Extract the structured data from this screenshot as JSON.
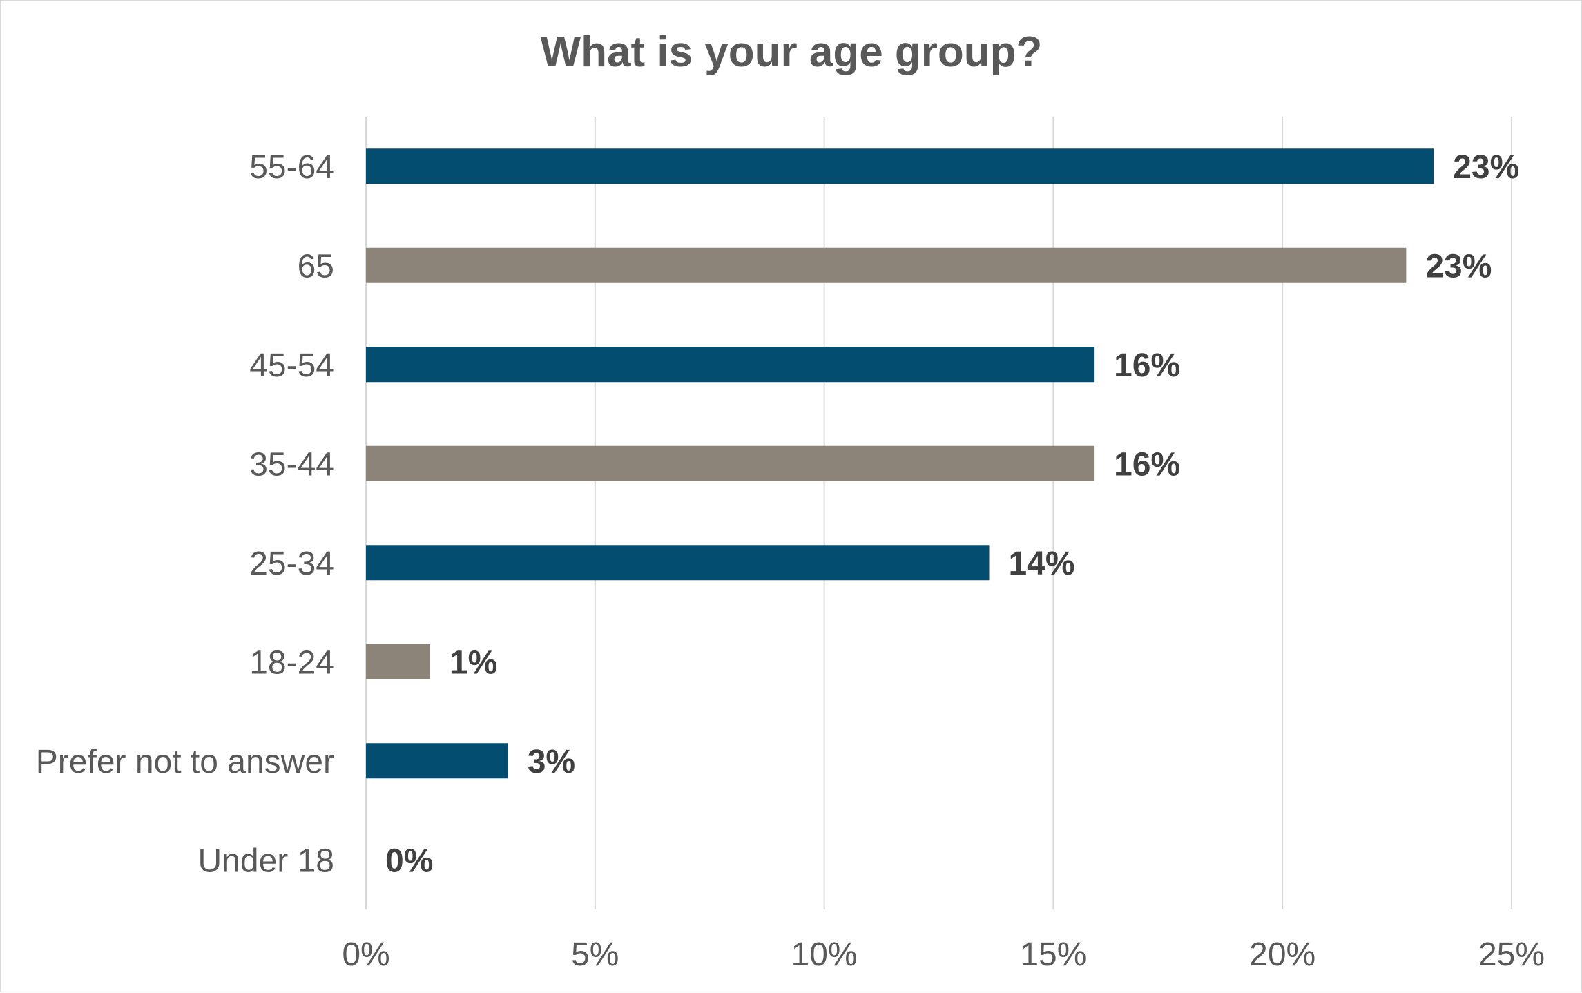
{
  "chart_data": {
    "type": "bar",
    "orientation": "horizontal",
    "title": "What is your age group?",
    "categories": [
      "55-64",
      "65",
      "45-54",
      "35-44",
      "25-34",
      "18-24",
      "Prefer not to answer",
      "Under 18"
    ],
    "values": [
      23.3,
      22.7,
      15.9,
      15.9,
      13.6,
      1.4,
      3.1,
      0
    ],
    "data_labels": [
      "23%",
      "23%",
      "16%",
      "16%",
      "14%",
      "1%",
      "3%",
      "0%"
    ],
    "bar_colors": [
      "#034d71",
      "#8c8379",
      "#034d71",
      "#8c8379",
      "#034d71",
      "#8c8379",
      "#034d71",
      "#8c8379"
    ],
    "xlim": [
      0,
      25
    ],
    "x_ticks": [
      0,
      5,
      10,
      15,
      20,
      25
    ],
    "x_tick_labels": [
      "0%",
      "5%",
      "10%",
      "15%",
      "20%",
      "25%"
    ],
    "grid": true,
    "legend": "none",
    "colors": {
      "primary": "#034d71",
      "secondary": "#8c8379",
      "gridline": "#d9d9d9",
      "text": "#595959"
    }
  }
}
